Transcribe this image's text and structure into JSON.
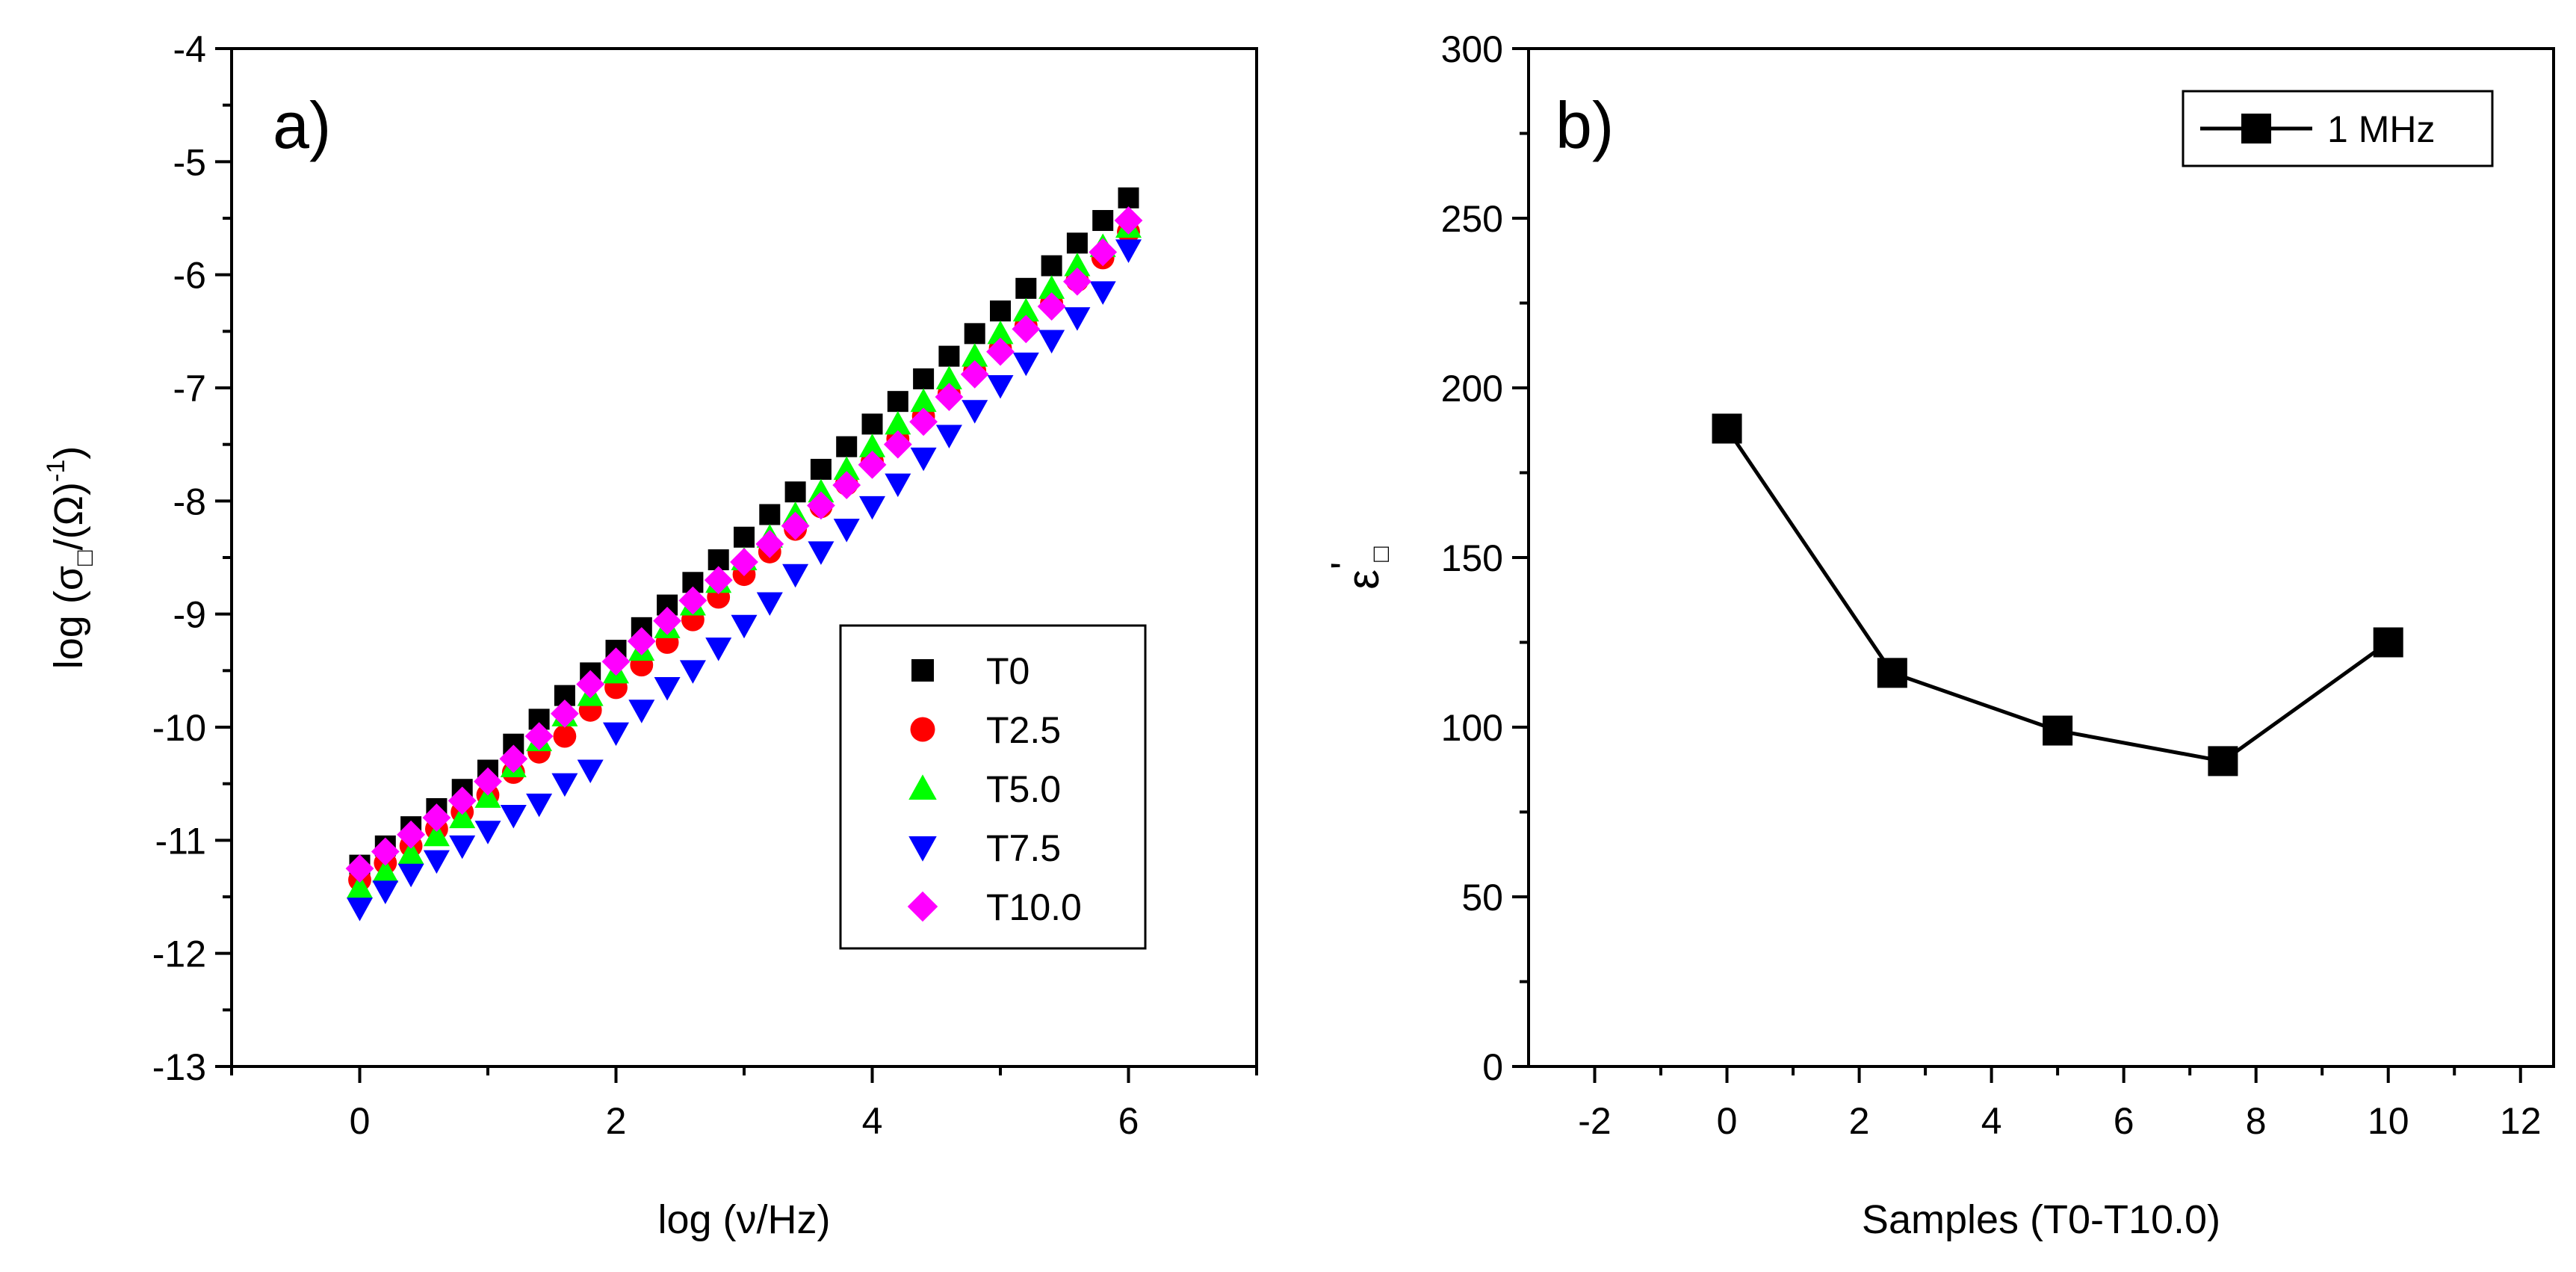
{
  "chart_data": [
    {
      "type": "scatter",
      "panel_label": "a)",
      "xlabel": "log (ν/Hz)",
      "ylabel_prefix": "log (σ",
      "ylabel_sub": "□",
      "ylabel_mid": "/(Ω)",
      "ylabel_sup": "-1",
      "ylabel_suffix": ")",
      "xlim": [
        -1,
        7
      ],
      "ylim": [
        -13,
        -4
      ],
      "xticks": [
        0,
        2,
        4,
        6
      ],
      "yticks": [
        -13,
        -12,
        -11,
        -10,
        -9,
        -8,
        -7,
        -6,
        -5,
        -4
      ],
      "legend_position": "lower-right",
      "x": [
        0.0,
        0.2,
        0.4,
        0.6,
        0.8,
        1.0,
        1.2,
        1.4,
        1.6,
        1.8,
        2.0,
        2.2,
        2.4,
        2.6,
        2.8,
        3.0,
        3.2,
        3.4,
        3.6,
        3.8,
        4.0,
        4.2,
        4.4,
        4.6,
        4.8,
        5.0,
        5.2,
        5.4,
        5.6,
        5.8,
        6.0
      ],
      "series": [
        {
          "name": "T0",
          "color": "#000000",
          "marker": "square",
          "values": [
            -11.22,
            -11.05,
            -10.88,
            -10.72,
            -10.55,
            -10.38,
            -10.15,
            -9.93,
            -9.72,
            -9.52,
            -9.32,
            -9.12,
            -8.92,
            -8.72,
            -8.52,
            -8.32,
            -8.12,
            -7.92,
            -7.72,
            -7.52,
            -7.32,
            -7.12,
            -6.92,
            -6.72,
            -6.52,
            -6.32,
            -6.12,
            -5.92,
            -5.72,
            -5.52,
            -5.32
          ]
        },
        {
          "name": "T2.5",
          "color": "#ff0000",
          "marker": "circle",
          "values": [
            -11.35,
            -11.2,
            -11.05,
            -10.9,
            -10.75,
            -10.6,
            -10.4,
            -10.22,
            -10.08,
            -9.85,
            -9.65,
            -9.45,
            -9.25,
            -9.05,
            -8.85,
            -8.65,
            -8.45,
            -8.25,
            -8.05,
            -7.85,
            -7.65,
            -7.45,
            -7.25,
            -7.05,
            -6.85,
            -6.65,
            -6.45,
            -6.25,
            -6.05,
            -5.85,
            -5.62
          ]
        },
        {
          "name": "T5.0",
          "color": "#00ff00",
          "marker": "triangle-up",
          "values": [
            -11.42,
            -11.28,
            -11.12,
            -10.96,
            -10.8,
            -10.62,
            -10.35,
            -10.12,
            -9.9,
            -9.72,
            -9.52,
            -9.32,
            -9.12,
            -8.92,
            -8.72,
            -8.52,
            -8.32,
            -8.12,
            -7.92,
            -7.72,
            -7.52,
            -7.32,
            -7.12,
            -6.92,
            -6.72,
            -6.52,
            -6.32,
            -6.12,
            -5.92,
            -5.75,
            -5.58
          ]
        },
        {
          "name": "T7.5",
          "color": "#0000ff",
          "marker": "triangle-down",
          "values": [
            -11.6,
            -11.45,
            -11.3,
            -11.18,
            -11.05,
            -10.92,
            -10.78,
            -10.68,
            -10.5,
            -10.38,
            -10.05,
            -9.85,
            -9.65,
            -9.5,
            -9.3,
            -9.1,
            -8.9,
            -8.65,
            -8.45,
            -8.25,
            -8.05,
            -7.85,
            -7.62,
            -7.42,
            -7.2,
            -6.98,
            -6.78,
            -6.58,
            -6.38,
            -6.15,
            -5.78
          ]
        },
        {
          "name": "T10.0",
          "color": "#ff00ff",
          "marker": "diamond",
          "values": [
            -11.25,
            -11.1,
            -10.95,
            -10.8,
            -10.65,
            -10.48,
            -10.28,
            -10.08,
            -9.88,
            -9.62,
            -9.42,
            -9.24,
            -9.06,
            -8.88,
            -8.7,
            -8.54,
            -8.38,
            -8.22,
            -8.04,
            -7.86,
            -7.68,
            -7.5,
            -7.3,
            -7.08,
            -6.88,
            -6.68,
            -6.48,
            -6.28,
            -6.06,
            -5.8,
            -5.52
          ]
        }
      ]
    },
    {
      "type": "line",
      "panel_label": "b)",
      "xlabel": "Samples (T0-T10.0)",
      "ylabel_main": "ε",
      "ylabel_sup": "'",
      "ylabel_sub": "□",
      "xlim": [
        -3,
        12.5
      ],
      "ylim": [
        0,
        300
      ],
      "xticks": [
        -2,
        0,
        2,
        4,
        6,
        8,
        10,
        12
      ],
      "yticks": [
        0,
        50,
        100,
        150,
        200,
        250,
        300
      ],
      "legend_position": "top-right",
      "series": [
        {
          "name": "1 MHz",
          "color": "#000000",
          "marker": "square",
          "x": [
            0,
            2.5,
            5,
            7.5,
            10
          ],
          "values": [
            188,
            116,
            99,
            90,
            125
          ]
        }
      ]
    }
  ]
}
